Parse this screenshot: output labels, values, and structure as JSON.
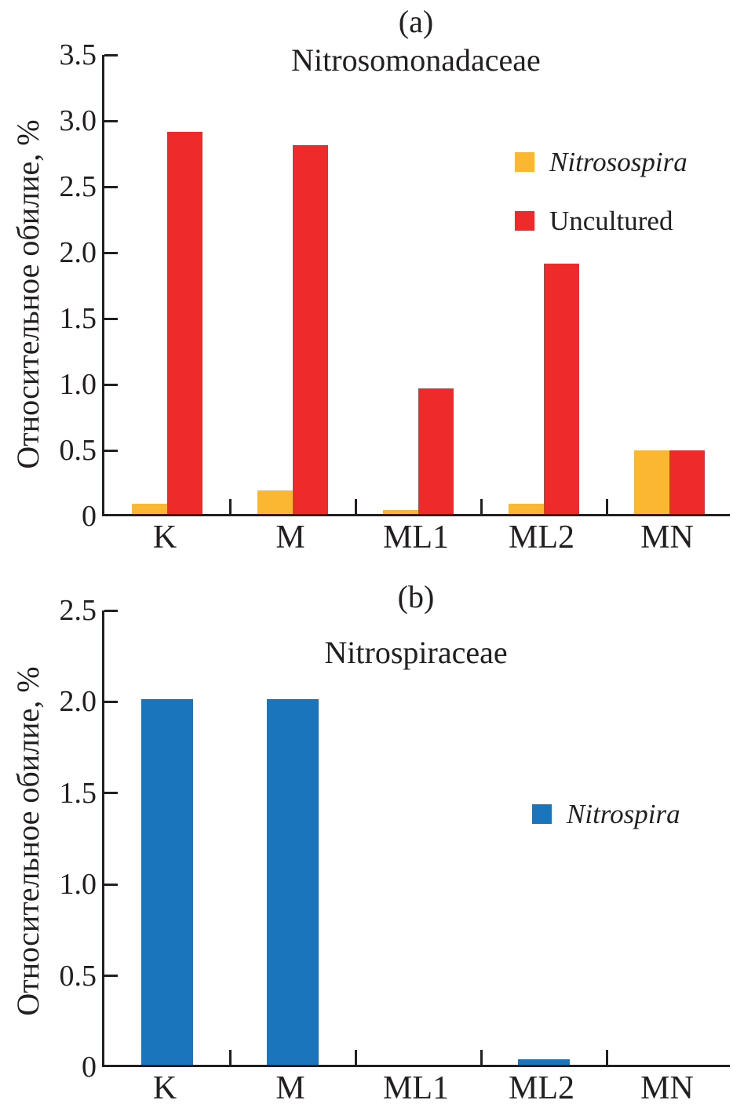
{
  "figure": {
    "background": "#ffffff",
    "axis_color": "#231f20"
  },
  "chart_data": [
    {
      "type": "bar",
      "panel_label": "(a)",
      "title": "Nitrosomonadaceae",
      "ylabel": "Относительное обилие, %",
      "categories": [
        "K",
        "M",
        "ML1",
        "ML2",
        "MN"
      ],
      "series": [
        {
          "name": "Nitrosospira",
          "italic": true,
          "color": "#FBB632",
          "values": [
            0.08,
            0.18,
            0.03,
            0.08,
            0.48
          ]
        },
        {
          "name": "Uncultured",
          "italic": false,
          "color": "#EE2A2B",
          "values": [
            2.9,
            2.8,
            0.95,
            1.9,
            0.48
          ]
        }
      ],
      "ylim": [
        0,
        3.5
      ],
      "ytick_labels": [
        "3.5",
        "3.0",
        "2.5",
        "2.0",
        "1.5",
        "1.0",
        "0.5",
        "0"
      ],
      "legend_position": "upper-right-inside",
      "grid": false
    },
    {
      "type": "bar",
      "panel_label": "(b)",
      "title": "Nitrospiraceae",
      "ylabel": "Относительное обилие, %",
      "categories": [
        "K",
        "M",
        "ML1",
        "ML2",
        "MN"
      ],
      "series": [
        {
          "name": "Nitrospira",
          "italic": true,
          "color": "#1B75BC",
          "values": [
            2.0,
            2.0,
            0,
            0.03,
            0
          ]
        }
      ],
      "ylim": [
        0,
        2.5
      ],
      "ytick_labels": [
        "2.5",
        "2.0",
        "1.5",
        "1.0",
        "0.5",
        "0"
      ],
      "legend_position": "middle-right-inside",
      "grid": false
    }
  ]
}
